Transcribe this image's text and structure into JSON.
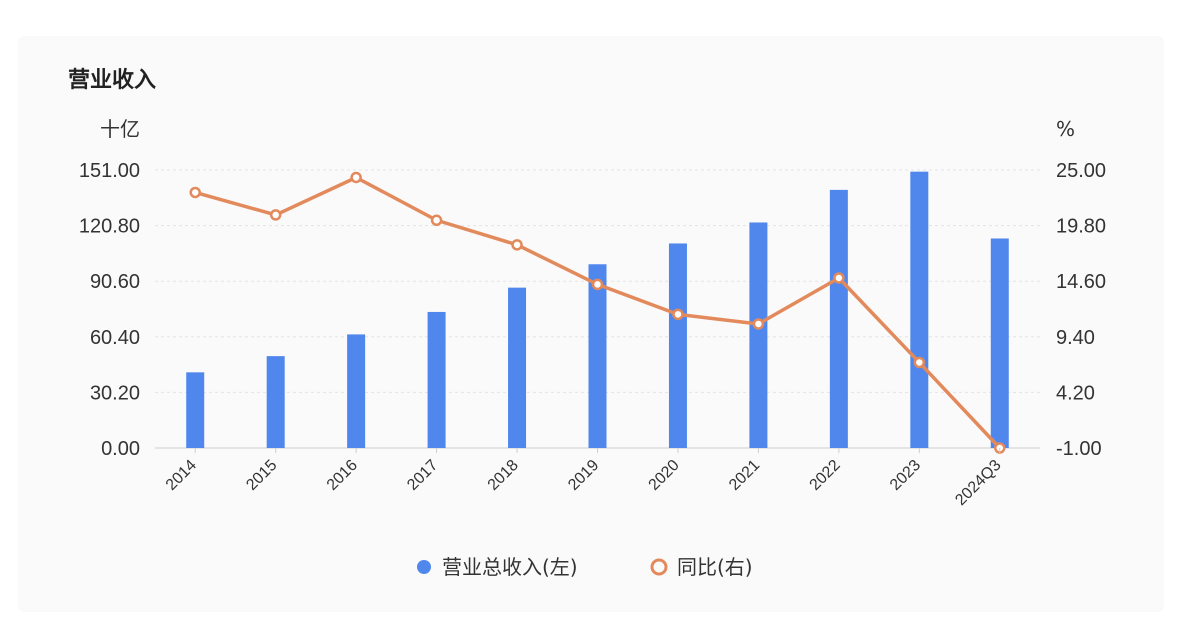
{
  "chart_data": {
    "type": "bar+line",
    "title": "营业收入",
    "categories": [
      "2014",
      "2015",
      "2016",
      "2017",
      "2018",
      "2019",
      "2020",
      "2021",
      "2022",
      "2023",
      "2024Q3"
    ],
    "left_axis": {
      "unit": "十亿",
      "ticks": [
        "0.00",
        "30.20",
        "60.40",
        "90.60",
        "120.80",
        "151.00"
      ],
      "ylim": [
        0,
        151
      ]
    },
    "right_axis": {
      "unit": "%",
      "ticks": [
        "-1.00",
        "4.20",
        "9.40",
        "14.60",
        "19.80",
        "25.00"
      ],
      "ylim": [
        -1,
        25
      ]
    },
    "series": [
      {
        "name": "营业总收入(左)",
        "type": "bar",
        "axis": "left",
        "color": "#5087ec",
        "values": [
          41.1,
          49.9,
          61.7,
          73.9,
          87.1,
          99.8,
          111.1,
          122.5,
          140.2,
          150.1,
          113.8
        ]
      },
      {
        "name": "同比(右)",
        "type": "line",
        "axis": "right",
        "color": "#e38a5c",
        "values": [
          22.9,
          20.8,
          24.3,
          20.3,
          18.0,
          14.3,
          11.5,
          10.6,
          14.9,
          7.0,
          -1.0
        ]
      }
    ],
    "grid": true,
    "legend": "bottom-center"
  }
}
